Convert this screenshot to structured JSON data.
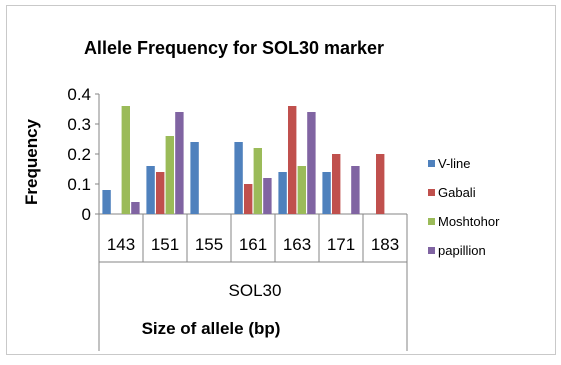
{
  "chart_data": {
    "type": "bar",
    "title": "Allele Frequency for SOL30 marker",
    "xlabel": "Size of allele (bp)",
    "ylabel": "Frequency",
    "group_label": "SOL30",
    "categories": [
      "143",
      "151",
      "155",
      "161",
      "163",
      "171",
      "183"
    ],
    "ylim": [
      0,
      0.4
    ],
    "yticks": [
      "0",
      "0.1",
      "0.2",
      "0.3",
      "0.4"
    ],
    "grid": false,
    "legend_position": "right",
    "series": [
      {
        "name": "V-line",
        "color": "#4f81bd",
        "values": [
          0.08,
          0.16,
          0.24,
          0.24,
          0.14,
          0.14,
          0
        ]
      },
      {
        "name": "Gabali",
        "color": "#c0504d",
        "values": [
          0,
          0.14,
          0,
          0.1,
          0.36,
          0.2,
          0.2
        ]
      },
      {
        "name": "Moshtohor",
        "color": "#9bbb59",
        "values": [
          0.36,
          0.26,
          0,
          0.22,
          0.16,
          0,
          0
        ]
      },
      {
        "name": "papillion",
        "color": "#8064a2",
        "values": [
          0.04,
          0.34,
          0,
          0.12,
          0.34,
          0.16,
          0
        ]
      }
    ]
  }
}
